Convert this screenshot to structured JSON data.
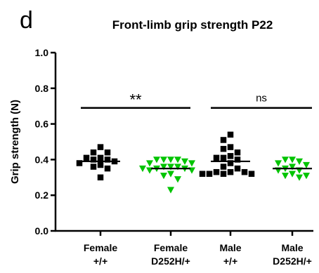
{
  "panel_letter": "d",
  "chart_data": {
    "type": "scatter",
    "title": "Front-limb grip strength P22",
    "xlabel": "",
    "ylabel": "Grip strength (N)",
    "ylim": [
      0.0,
      1.0
    ],
    "yticks": [
      "0.0",
      "0.2",
      "0.4",
      "0.6",
      "0.8",
      "1.0"
    ],
    "grid": false,
    "legend": "none",
    "categories": [
      {
        "line1": "Female",
        "line2": "+/+"
      },
      {
        "line1": "Female",
        "line2": "D252H/+"
      },
      {
        "line1": "Male",
        "line2": "+/+"
      },
      {
        "line1": "Male",
        "line2": "D252H/+"
      }
    ],
    "groups": [
      {
        "marker": "square",
        "color": "#000000",
        "mean": 0.39,
        "values": [
          0.47,
          0.44,
          0.44,
          0.41,
          0.41,
          0.4,
          0.4,
          0.39,
          0.38,
          0.37,
          0.36,
          0.35,
          0.3
        ]
      },
      {
        "marker": "triangle-down",
        "color": "#00c400",
        "mean": 0.35,
        "values": [
          0.4,
          0.4,
          0.4,
          0.4,
          0.39,
          0.38,
          0.38,
          0.36,
          0.36,
          0.36,
          0.35,
          0.35,
          0.35,
          0.34,
          0.34,
          0.32,
          0.31,
          0.29,
          0.23
        ]
      },
      {
        "marker": "square",
        "color": "#000000",
        "mean": 0.39,
        "values": [
          0.54,
          0.51,
          0.47,
          0.46,
          0.44,
          0.42,
          0.41,
          0.41,
          0.4,
          0.38,
          0.36,
          0.35,
          0.33,
          0.33,
          0.33,
          0.32,
          0.32,
          0.32,
          0.32
        ]
      },
      {
        "marker": "triangle-down",
        "color": "#00c400",
        "mean": 0.35,
        "values": [
          0.4,
          0.4,
          0.39,
          0.38,
          0.37,
          0.36,
          0.35,
          0.34,
          0.34,
          0.32,
          0.31,
          0.31,
          0.3
        ]
      }
    ],
    "comparisons": [
      {
        "from": 0,
        "to": 1,
        "y": 0.69,
        "label": "**"
      },
      {
        "from": 2,
        "to": 3,
        "y": 0.69,
        "label": "ns"
      }
    ]
  }
}
